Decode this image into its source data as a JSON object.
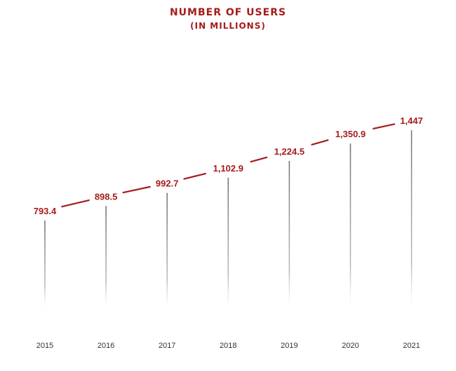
{
  "chart_data": {
    "type": "line",
    "title": "NUMBER OF USERS",
    "subtitle": "(IN MILLIONS)",
    "categories": [
      "2015",
      "2016",
      "2017",
      "2018",
      "2019",
      "2020",
      "2021"
    ],
    "values": [
      793.4,
      898.5,
      992.7,
      1102.9,
      1224.5,
      1350.9,
      1447
    ],
    "value_labels": [
      "793.4",
      "898.5",
      "992.7",
      "1,102.9",
      "1,224.5",
      "1,350.9",
      "1,447"
    ],
    "xlabel": "",
    "ylabel": "",
    "ylim": [
      0,
      1447
    ],
    "grid": false,
    "legend": "none",
    "colors": {
      "line": "#a51c1c",
      "label": "#a51c1c",
      "drop_line": "#7a7a7a"
    }
  }
}
